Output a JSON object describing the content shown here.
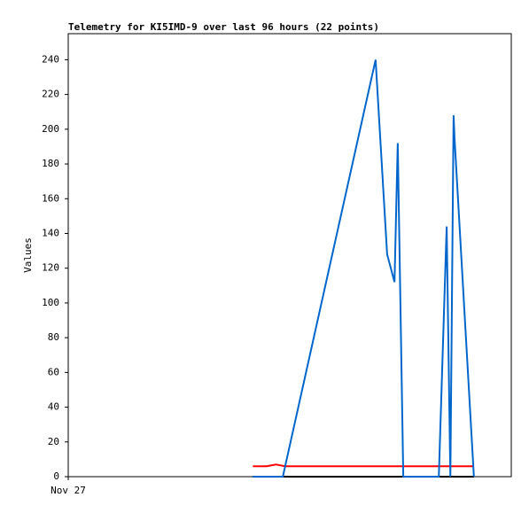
{
  "chart_data": {
    "type": "line",
    "title": "Telemetry for KI5IMD-9 over last 96 hours (22 points)",
    "y_label": "Values",
    "xlim": [
      0,
      96
    ],
    "xticks": [
      {
        "value": 0,
        "label": "Nov 27"
      }
    ],
    "ylim": [
      0,
      255
    ],
    "yticks": [
      0,
      20,
      40,
      60,
      80,
      100,
      120,
      140,
      160,
      180,
      200,
      220,
      240
    ],
    "grid": false,
    "series": [
      {
        "color": "#000000",
        "x": [
          40,
          87.9
        ],
        "values": [
          0,
          0
        ]
      },
      {
        "color": "#ff0000",
        "x": [
          40,
          43,
          45,
          47,
          87.9
        ],
        "values": [
          6,
          6,
          7,
          6,
          6
        ]
      },
      {
        "color": "#0066cc",
        "x": [
          40,
          46.5,
          66.6,
          69.1,
          70.7,
          71.4,
          72.6,
          80.3,
          82,
          82.8,
          83.5,
          83.7,
          87.9
        ],
        "values": [
          0,
          0,
          240,
          128,
          112,
          192,
          0,
          0,
          144,
          0,
          208,
          195,
          0
        ]
      }
    ]
  }
}
